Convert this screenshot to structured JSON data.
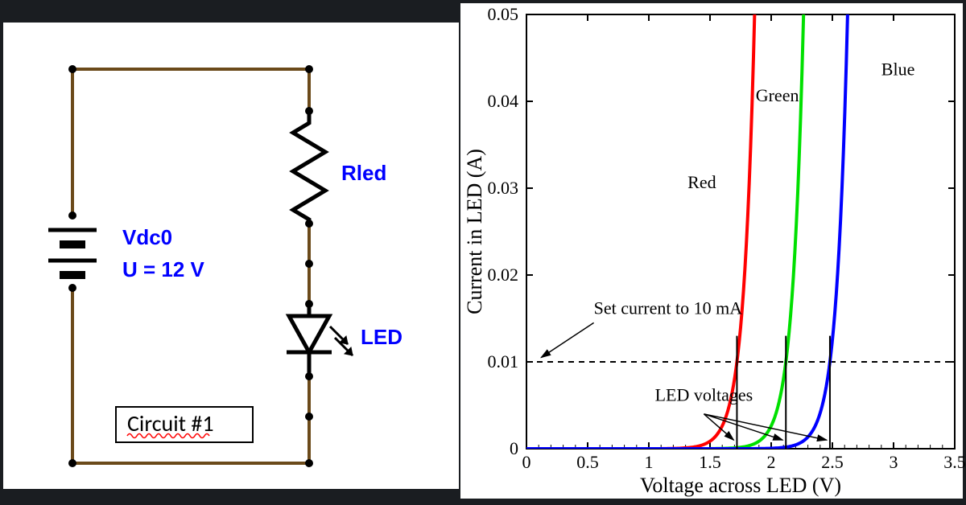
{
  "circuit": {
    "title": "Circuit #1",
    "source_label": "Vdc0",
    "source_value": "U = 12 V",
    "resistor_label": "Rled",
    "led_label": "LED",
    "wire_color": "#6b4a1a",
    "wire_width": 4,
    "label_color": "#0000ff",
    "symbol_color": "#000000",
    "node_radius": 5
  },
  "chart": {
    "title_x": "Voltage across LED (V)",
    "title_y": "Current in LED (A)",
    "xlim": [
      0,
      3.5
    ],
    "ylim": [
      0,
      0.05
    ],
    "xticks": [
      0,
      0.5,
      1,
      1.5,
      2,
      2.5,
      3,
      3.5
    ],
    "yticks": [
      0,
      0.01,
      0.02,
      0.03,
      0.04,
      0.05
    ],
    "axis_color": "#000000",
    "axis_fontsize": 26,
    "tick_fontsize": 22,
    "curve_width": 4,
    "annotations": {
      "set_current": "Set current to 10 mA",
      "led_voltages": "LED voltages",
      "red": "Red",
      "green": "Green",
      "blue": "Blue"
    },
    "dashed_y": 0.01,
    "series": [
      {
        "name": "Red",
        "color": "#ff0000",
        "threshold": 1.72,
        "label_x": 1.55,
        "label_y": 0.03
      },
      {
        "name": "Green",
        "color": "#00e000",
        "threshold": 2.12,
        "label_x": 2.05,
        "label_y": 0.04
      },
      {
        "name": "Blue",
        "color": "#0000ff",
        "threshold": 2.48,
        "label_x": 2.9,
        "label_y": 0.043
      }
    ],
    "voltage_markers": [
      1.72,
      2.12,
      2.48
    ]
  }
}
